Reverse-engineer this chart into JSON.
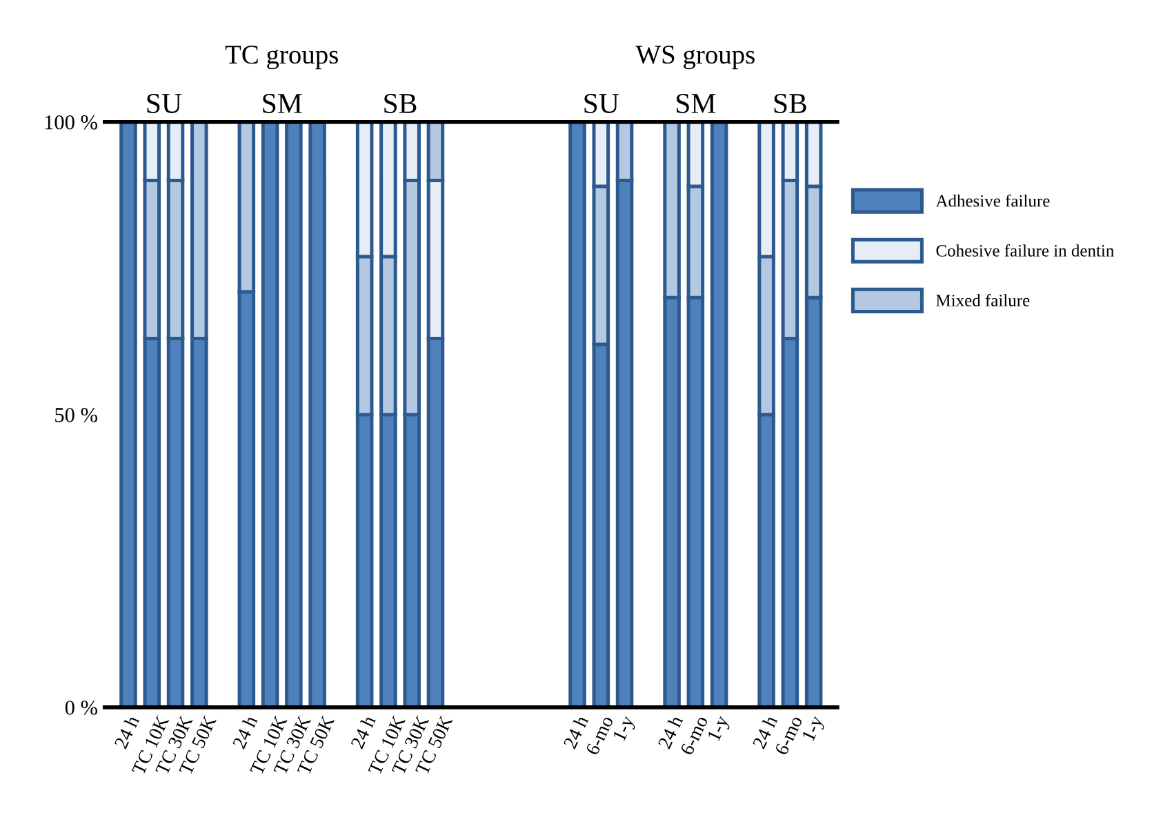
{
  "chart_data": {
    "type": "bar",
    "stacked": true,
    "categories": [
      "24 h",
      "TC 10K",
      "TC 30K",
      "TC 50K",
      null,
      "24 h",
      "TC 10K",
      "TC 30K",
      "TC 50K",
      null,
      "24 h",
      "TC 10K",
      "TC 30K",
      "TC 50K",
      null,
      null,
      null,
      null,
      null,
      "24 h",
      "6-mo",
      "1-y",
      null,
      "24 h",
      "6-mo",
      "1-y",
      null,
      "24 h",
      "6-mo",
      "1-y"
    ],
    "series": [
      {
        "name": "Adhesive failure",
        "color": "#4f81bd",
        "values": [
          100,
          63,
          63,
          63,
          null,
          71,
          100,
          100,
          100,
          null,
          50,
          50,
          50,
          63,
          null,
          null,
          null,
          null,
          null,
          100,
          62,
          90,
          null,
          70,
          70,
          100,
          null,
          50,
          63,
          70
        ]
      },
      {
        "name": "Mixed failure",
        "color": "#b4c8e2",
        "values": [
          0,
          27,
          27,
          37,
          null,
          29,
          0,
          0,
          0,
          null,
          27,
          27,
          40,
          0,
          null,
          null,
          null,
          null,
          null,
          0,
          27,
          10,
          null,
          30,
          19,
          0,
          null,
          27,
          27,
          19
        ]
      },
      {
        "name": "Cohesive failure in dentin",
        "color": "#e6edf6",
        "values": [
          0,
          10,
          10,
          0,
          null,
          0,
          0,
          0,
          0,
          null,
          23,
          23,
          10,
          27,
          null,
          null,
          null,
          null,
          null,
          0,
          11,
          0,
          null,
          0,
          11,
          0,
          null,
          23,
          10,
          11
        ]
      },
      {
        "color": "#b4c8e2",
        "values": [
          0,
          0,
          0,
          0,
          null,
          0,
          0,
          0,
          0,
          null,
          0,
          0,
          0,
          10,
          null,
          null,
          null,
          null,
          null,
          0,
          0,
          0,
          null,
          0,
          0,
          0,
          null,
          0,
          0,
          0
        ]
      }
    ],
    "ylim": [
      0,
      100
    ],
    "yticks": [
      {
        "value": 0,
        "label": "0 %"
      },
      {
        "value": 50,
        "label": "50 %"
      },
      {
        "value": 100,
        "label": "100 %"
      }
    ],
    "annotations": [
      "TC groups",
      "WS groups",
      "SU",
      "SM",
      "SB",
      "SU",
      "SM",
      "SB"
    ],
    "legend": "right",
    "grid": false
  }
}
